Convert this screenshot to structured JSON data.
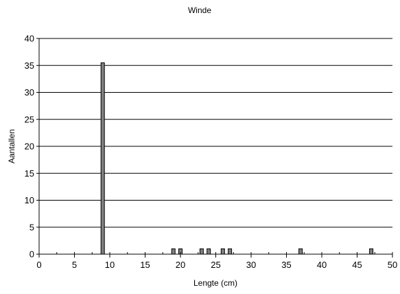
{
  "chart_data": {
    "type": "bar",
    "title": "Winde",
    "xlabel": "Lengte (cm)",
    "ylabel": "Aantallen",
    "xlim": [
      0,
      50
    ],
    "ylim": [
      0,
      40
    ],
    "x_ticks": [
      0,
      5,
      10,
      15,
      20,
      25,
      30,
      35,
      40,
      45,
      50
    ],
    "y_ticks": [
      0,
      5,
      10,
      15,
      20,
      25,
      30,
      35,
      40
    ],
    "grid": "horizontal",
    "legend": "none",
    "bar_color": "#808080",
    "x": [
      9,
      19,
      20,
      23,
      24,
      26,
      27,
      37,
      47
    ],
    "values": [
      35.5,
      1,
      1,
      1,
      1,
      1,
      1,
      1,
      1
    ]
  }
}
